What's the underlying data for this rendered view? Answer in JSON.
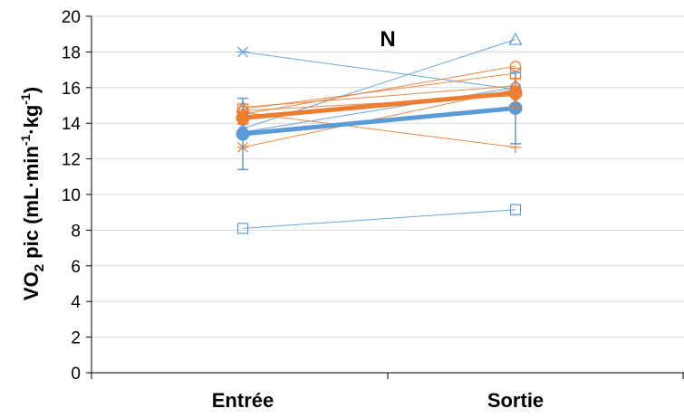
{
  "chart_data": {
    "type": "line",
    "title": "N",
    "categories": [
      "Entrée",
      "Sortie"
    ],
    "ylabel": {
      "prefix": "VO",
      "sub": "2",
      "mid1": " pic (mL·min",
      "sup1": "-1",
      "mid2": "·kg",
      "sup2": "-1",
      "suffix": ")"
    },
    "ylim": [
      0,
      20
    ],
    "yticks": [
      "0",
      "2",
      "4",
      "6",
      "8",
      "10",
      "12",
      "14",
      "16",
      "18",
      "20"
    ],
    "grid": true,
    "legend": "none",
    "colors": {
      "blue": "#5b9bd5",
      "orange": "#ed7d31",
      "grid": "#d9d9d9",
      "axis": "#000000"
    },
    "mean_series": [
      {
        "color": "#5b9bd5",
        "values": [
          13.4,
          14.85
        ],
        "error": [
          2.0,
          2.0
        ]
      },
      {
        "color": "#ed7d31",
        "values": [
          14.3,
          15.7
        ],
        "error": [
          0.35,
          0.8
        ]
      }
    ],
    "individual_series": [
      {
        "color": "#5b9bd5",
        "marker": "asterisk",
        "values": [
          18.0,
          15.9
        ]
      },
      {
        "color": "#5b9bd5",
        "marker": "triangle",
        "values": [
          13.7,
          18.7
        ]
      },
      {
        "color": "#5b9bd5",
        "marker": "square",
        "values": [
          8.1,
          9.15
        ]
      },
      {
        "color": "#5b9bd5",
        "marker": "circle",
        "values": [
          13.5,
          16.0
        ]
      },
      {
        "color": "#5b9bd5",
        "marker": "diamond",
        "values": [
          14.2,
          15.8
        ]
      },
      {
        "color": "#ed7d31",
        "marker": "triangle",
        "values": [
          14.9,
          16.1
        ]
      },
      {
        "color": "#ed7d31",
        "marker": "square",
        "values": [
          14.8,
          16.8
        ]
      },
      {
        "color": "#ed7d31",
        "marker": "circle",
        "values": [
          14.5,
          17.2
        ]
      },
      {
        "color": "#ed7d31",
        "marker": "plus",
        "values": [
          14.6,
          12.65
        ]
      },
      {
        "color": "#ed7d31",
        "marker": "asterisk",
        "values": [
          12.65,
          15.9
        ]
      },
      {
        "color": "#ed7d31",
        "marker": "diamond",
        "values": [
          14.7,
          15.55
        ]
      }
    ]
  }
}
